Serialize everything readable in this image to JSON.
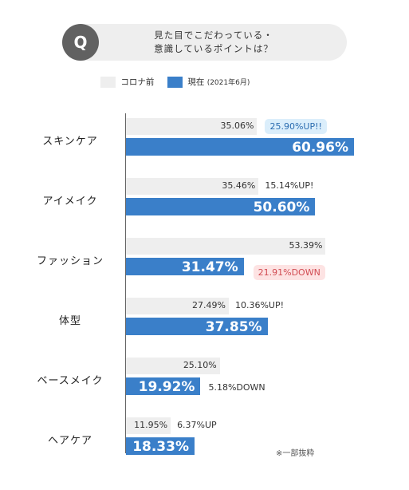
{
  "question": {
    "badge": "Q",
    "line1": "見た目でこだわっている・",
    "line2": "意識しているポイントは？"
  },
  "legend": {
    "before": "コロナ前",
    "after_main": "現在",
    "after_sub": "(2021年6月)"
  },
  "colors": {
    "before": "#eeeeee",
    "after": "#3a7fc9",
    "up_highlight": "#dbeefb",
    "down_highlight": "#fde3e3"
  },
  "chart_data": {
    "type": "bar",
    "orientation": "horizontal",
    "categories": [
      "スキンケア",
      "アイメイク",
      "ファッション",
      "体型",
      "ベースメイク",
      "ヘアケア"
    ],
    "series": [
      {
        "name": "コロナ前",
        "values": [
          35.06,
          35.46,
          53.39,
          27.49,
          25.1,
          11.95
        ]
      },
      {
        "name": "現在 (2021年6月)",
        "values": [
          60.96,
          50.6,
          31.47,
          37.85,
          19.92,
          18.33
        ]
      }
    ],
    "before_labels": [
      "35.06%",
      "35.46%",
      "53.39%",
      "27.49%",
      "25.10%",
      "11.95%"
    ],
    "after_labels": [
      "60.96%",
      "50.60%",
      "31.47%",
      "37.85%",
      "19.92%",
      "18.33%"
    ],
    "changes": [
      "25.90%UP!!",
      "15.14%UP!",
      "21.91%DOWN",
      "10.36%UP!",
      "5.18%DOWN",
      "6.37%UP"
    ],
    "change_highlight": [
      "up",
      "",
      "down",
      "",
      "",
      ""
    ],
    "xlim": [
      0,
      62
    ],
    "grid": false,
    "legend": "top"
  },
  "note": "※一部抜粋"
}
